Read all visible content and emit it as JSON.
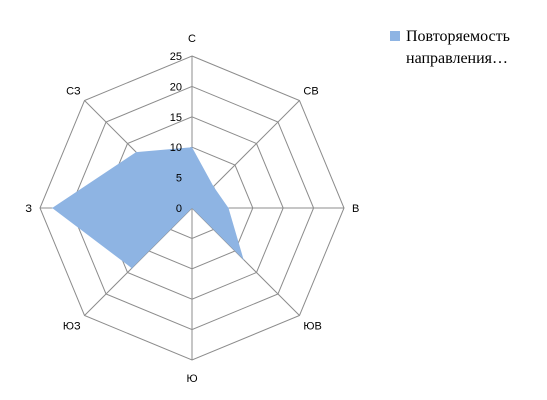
{
  "chart_data": {
    "type": "radar",
    "categories": [
      "С",
      "СВ",
      "В",
      "ЮВ",
      "Ю",
      "ЮЗ",
      "З",
      "СЗ"
    ],
    "series": [
      {
        "name": "Повторяемость направления…",
        "values": [
          10,
          5,
          6,
          12,
          0,
          14,
          23,
          13
        ]
      }
    ],
    "rmax": 25,
    "ticks": [
      0,
      5,
      10,
      15,
      20,
      25
    ],
    "grid": true,
    "legend_position": "right"
  },
  "colors": {
    "series_fill": "#8eb4e3",
    "grid": "#8c8c8c"
  }
}
